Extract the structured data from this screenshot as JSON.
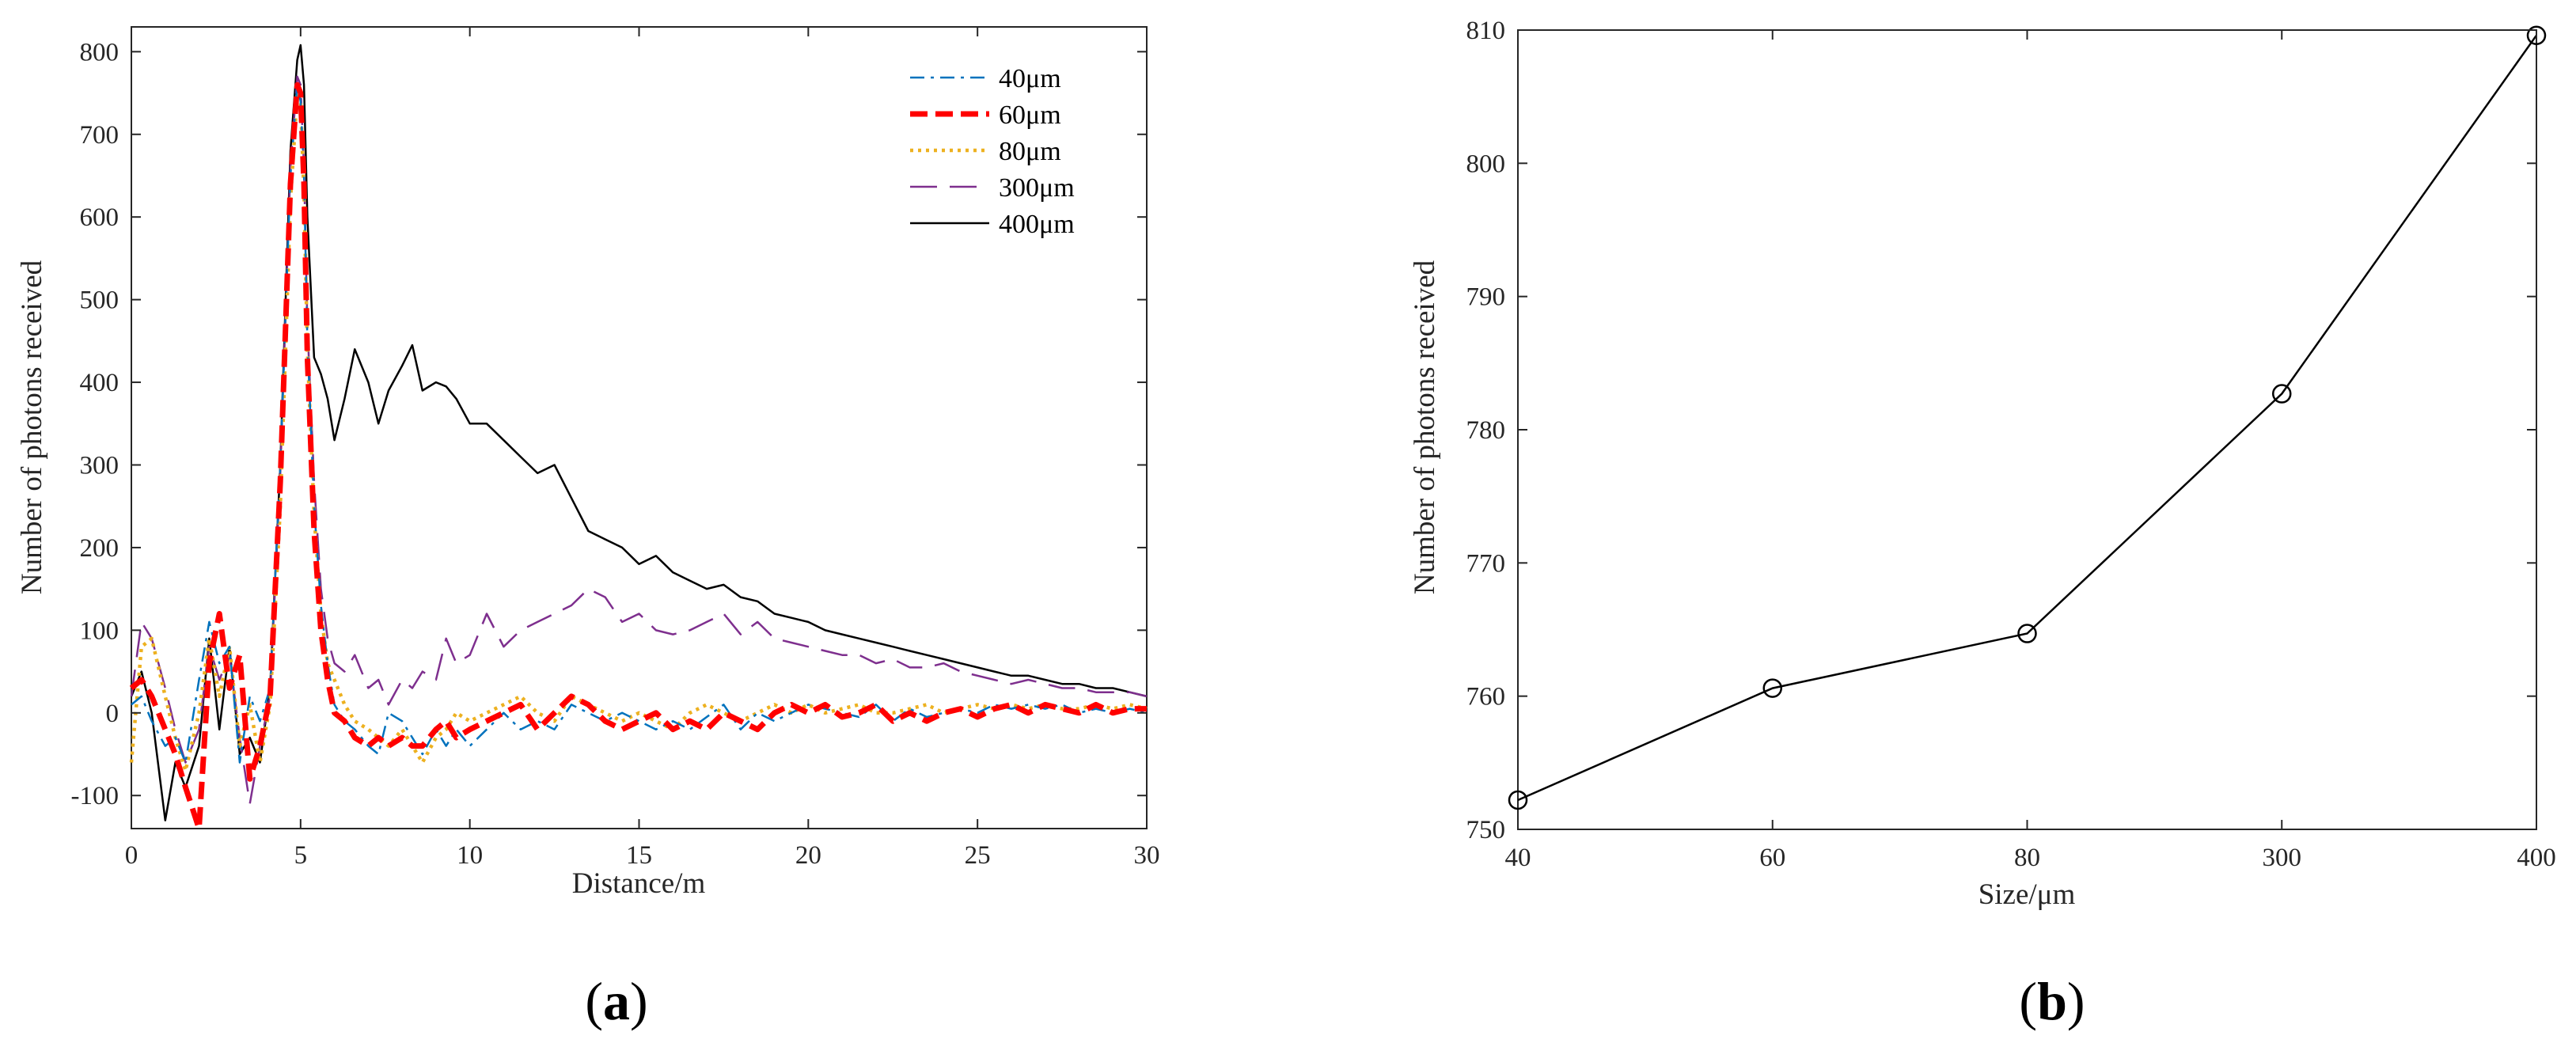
{
  "chart_data": [
    {
      "type": "line",
      "xlabel": "Distance/m",
      "ylabel": "Number of photons received",
      "xlim": [
        0,
        30
      ],
      "ylim": [
        -140,
        830
      ],
      "xticks": [
        0,
        5,
        10,
        15,
        20,
        25,
        30
      ],
      "yticks": [
        -100,
        0,
        100,
        200,
        300,
        400,
        500,
        600,
        700,
        800
      ],
      "legend_position": "top-right",
      "caption": {
        "open": "(",
        "letter": "a",
        "close": ")"
      },
      "series": [
        {
          "name": "40μm",
          "color": "#0072BD",
          "dash": "dashdot",
          "x": [
            0,
            0.3,
            0.6,
            1.0,
            1.3,
            1.6,
            2.0,
            2.3,
            2.6,
            2.9,
            3.2,
            3.5,
            3.8,
            4.1,
            4.4,
            4.7,
            4.9,
            5.0,
            5.1,
            5.2,
            5.4,
            5.6,
            5.8,
            6.0,
            6.3,
            6.6,
            7.0,
            7.3,
            7.6,
            8.0,
            8.3,
            8.6,
            9.0,
            9.3,
            9.6,
            10.0,
            10.5,
            11.0,
            11.5,
            12.0,
            12.5,
            13.0,
            13.5,
            14.0,
            14.5,
            15.0,
            15.5,
            16.0,
            16.5,
            17.0,
            17.5,
            18.0,
            18.5,
            19.0,
            19.5,
            20.0,
            20.5,
            21.0,
            21.5,
            22.0,
            22.5,
            23.0,
            23.5,
            24.0,
            24.5,
            25.0,
            25.5,
            26.0,
            26.5,
            27.0,
            27.5,
            28.0,
            28.5,
            29.0,
            29.5,
            30.0
          ],
          "y": [
            10,
            20,
            -10,
            -40,
            -30,
            -60,
            40,
            110,
            60,
            80,
            -60,
            20,
            -10,
            30,
            300,
            650,
            760,
            740,
            650,
            450,
            250,
            130,
            60,
            10,
            -10,
            -20,
            -40,
            -50,
            0,
            -10,
            -30,
            -50,
            -20,
            -40,
            -20,
            -40,
            -20,
            0,
            -20,
            -10,
            -20,
            10,
            0,
            -10,
            0,
            -10,
            -20,
            -10,
            -20,
            -5,
            10,
            -20,
            0,
            -10,
            0,
            10,
            5,
            0,
            -5,
            10,
            -10,
            5,
            -5,
            0,
            5,
            0,
            10,
            5,
            10,
            5,
            10,
            0,
            5,
            0,
            5,
            0
          ]
        },
        {
          "name": "60μm",
          "color": "#FF0000",
          "dash": "dash",
          "x": [
            0,
            0.3,
            0.6,
            1.0,
            1.3,
            1.6,
            2.0,
            2.3,
            2.6,
            2.9,
            3.2,
            3.5,
            3.8,
            4.1,
            4.4,
            4.7,
            4.9,
            5.0,
            5.1,
            5.2,
            5.4,
            5.6,
            5.8,
            6.0,
            6.3,
            6.6,
            7.0,
            7.3,
            7.6,
            8.0,
            8.3,
            8.6,
            9.0,
            9.3,
            9.6,
            10.0,
            10.5,
            11.0,
            11.5,
            12.0,
            12.5,
            13.0,
            13.5,
            14.0,
            14.5,
            15.0,
            15.5,
            16.0,
            16.5,
            17.0,
            17.5,
            18.0,
            18.5,
            19.0,
            19.5,
            20.0,
            20.5,
            21.0,
            21.5,
            22.0,
            22.5,
            23.0,
            23.5,
            24.0,
            24.5,
            25.0,
            25.5,
            26.0,
            26.5,
            27.0,
            27.5,
            28.0,
            28.5,
            29.0,
            29.5,
            30.0
          ],
          "y": [
            30,
            40,
            20,
            -20,
            -50,
            -90,
            -140,
            60,
            120,
            30,
            70,
            -80,
            -40,
            20,
            280,
            640,
            760,
            750,
            640,
            430,
            220,
            100,
            40,
            0,
            -10,
            -30,
            -40,
            -30,
            -40,
            -30,
            -40,
            -40,
            -20,
            -10,
            -30,
            -20,
            -10,
            0,
            10,
            -20,
            0,
            20,
            10,
            -10,
            -20,
            -10,
            0,
            -20,
            -10,
            -20,
            0,
            -10,
            -20,
            0,
            10,
            0,
            10,
            -5,
            0,
            10,
            -10,
            0,
            -10,
            0,
            5,
            -5,
            5,
            10,
            0,
            10,
            5,
            0,
            10,
            0,
            5,
            5
          ]
        },
        {
          "name": "80μm",
          "color": "#EDB120",
          "dash": "dot",
          "x": [
            0,
            0.3,
            0.6,
            1.0,
            1.3,
            1.6,
            2.0,
            2.3,
            2.6,
            2.9,
            3.2,
            3.5,
            3.8,
            4.1,
            4.4,
            4.7,
            4.9,
            5.0,
            5.1,
            5.2,
            5.4,
            5.6,
            5.8,
            6.0,
            6.3,
            6.6,
            7.0,
            7.3,
            7.6,
            8.0,
            8.3,
            8.6,
            9.0,
            9.3,
            9.6,
            10.0,
            10.5,
            11.0,
            11.5,
            12.0,
            12.5,
            13.0,
            13.5,
            14.0,
            14.5,
            15.0,
            15.5,
            16.0,
            16.5,
            17.0,
            17.5,
            18.0,
            18.5,
            19.0,
            19.5,
            20.0,
            20.5,
            21.0,
            21.5,
            22.0,
            22.5,
            23.0,
            23.5,
            24.0,
            24.5,
            25.0,
            25.5,
            26.0,
            26.5,
            27.0,
            27.5,
            28.0,
            28.5,
            29.0,
            29.5,
            30.0
          ],
          "y": [
            -60,
            80,
            90,
            20,
            -30,
            -70,
            0,
            90,
            20,
            80,
            -40,
            10,
            -60,
            10,
            250,
            620,
            750,
            740,
            630,
            440,
            240,
            120,
            60,
            40,
            10,
            -10,
            -20,
            -30,
            -40,
            -20,
            -40,
            -60,
            -30,
            -20,
            0,
            -10,
            0,
            10,
            20,
            0,
            -10,
            20,
            10,
            0,
            -10,
            0,
            -10,
            -20,
            0,
            10,
            0,
            -10,
            0,
            10,
            0,
            10,
            0,
            5,
            10,
            0,
            0,
            5,
            10,
            0,
            5,
            10,
            5,
            10,
            5,
            10,
            5,
            5,
            10,
            5,
            10,
            5
          ]
        },
        {
          "name": "300μm",
          "color": "#7E2F8E",
          "dash": "longdash",
          "x": [
            0,
            0.3,
            0.6,
            1.0,
            1.3,
            1.6,
            2.0,
            2.3,
            2.6,
            2.9,
            3.2,
            3.5,
            3.8,
            4.1,
            4.4,
            4.7,
            4.9,
            5.0,
            5.1,
            5.2,
            5.4,
            5.6,
            5.8,
            6.0,
            6.3,
            6.6,
            7.0,
            7.3,
            7.6,
            8.0,
            8.3,
            8.6,
            9.0,
            9.3,
            9.6,
            10.0,
            10.5,
            11.0,
            11.5,
            12.0,
            12.5,
            13.0,
            13.5,
            14.0,
            14.5,
            15.0,
            15.5,
            16.0,
            16.5,
            17.0,
            17.5,
            18.0,
            18.5,
            19.0,
            19.5,
            20.0,
            20.5,
            21.0,
            21.5,
            22.0,
            22.5,
            23.0,
            23.5,
            24.0,
            24.5,
            25.0,
            25.5,
            26.0,
            26.5,
            27.0,
            27.5,
            28.0,
            28.5,
            29.0,
            29.5,
            30.0
          ],
          "y": [
            20,
            110,
            90,
            30,
            -20,
            -60,
            -20,
            80,
            40,
            70,
            -30,
            -110,
            -40,
            20,
            290,
            660,
            770,
            760,
            660,
            470,
            280,
            150,
            90,
            60,
            50,
            70,
            30,
            40,
            10,
            40,
            30,
            50,
            40,
            90,
            60,
            70,
            120,
            80,
            100,
            110,
            120,
            130,
            150,
            140,
            110,
            120,
            100,
            95,
            100,
            110,
            120,
            95,
            110,
            90,
            85,
            80,
            75,
            70,
            70,
            60,
            65,
            55,
            55,
            60,
            50,
            45,
            40,
            35,
            40,
            35,
            30,
            30,
            25,
            25,
            25,
            20
          ]
        },
        {
          "name": "400μm",
          "color": "#000000",
          "dash": "solid",
          "x": [
            0,
            0.3,
            0.6,
            1.0,
            1.3,
            1.6,
            2.0,
            2.3,
            2.6,
            2.9,
            3.2,
            3.5,
            3.8,
            4.1,
            4.4,
            4.7,
            4.9,
            5.0,
            5.1,
            5.2,
            5.4,
            5.6,
            5.8,
            6.0,
            6.3,
            6.6,
            7.0,
            7.3,
            7.6,
            8.0,
            8.3,
            8.6,
            9.0,
            9.3,
            9.6,
            10.0,
            10.5,
            11.0,
            11.5,
            12.0,
            12.5,
            13.0,
            13.5,
            14.0,
            14.5,
            15.0,
            15.5,
            16.0,
            16.5,
            17.0,
            17.5,
            18.0,
            18.5,
            19.0,
            19.5,
            20.0,
            20.5,
            21.0,
            21.5,
            22.0,
            22.5,
            23.0,
            23.5,
            24.0,
            24.5,
            25.0,
            25.5,
            26.0,
            26.5,
            27.0,
            27.5,
            28.0,
            28.5,
            29.0,
            29.5,
            30.0
          ],
          "y": [
            20,
            50,
            0,
            -130,
            -60,
            -90,
            -40,
            90,
            -20,
            80,
            -50,
            -30,
            -60,
            30,
            300,
            680,
            790,
            808,
            760,
            600,
            430,
            410,
            380,
            330,
            380,
            440,
            400,
            350,
            390,
            420,
            445,
            390,
            400,
            395,
            380,
            350,
            350,
            330,
            310,
            290,
            300,
            260,
            220,
            210,
            200,
            180,
            190,
            170,
            160,
            150,
            155,
            140,
            135,
            120,
            115,
            110,
            100,
            95,
            90,
            85,
            80,
            75,
            70,
            65,
            60,
            55,
            50,
            45,
            45,
            40,
            35,
            35,
            30,
            30,
            25,
            20
          ]
        }
      ]
    },
    {
      "type": "line",
      "xlabel": "Size/μm",
      "ylabel": "Number of photons received",
      "categories": [
        "40",
        "60",
        "80",
        "300",
        "400"
      ],
      "ylim": [
        750,
        810
      ],
      "yticks": [
        750,
        760,
        770,
        780,
        790,
        800,
        810
      ],
      "marker": "circle",
      "color": "#000000",
      "caption": {
        "open": "(",
        "letter": "b",
        "close": ")"
      },
      "values": [
        752.2,
        760.6,
        764.7,
        782.7,
        809.6
      ]
    }
  ]
}
